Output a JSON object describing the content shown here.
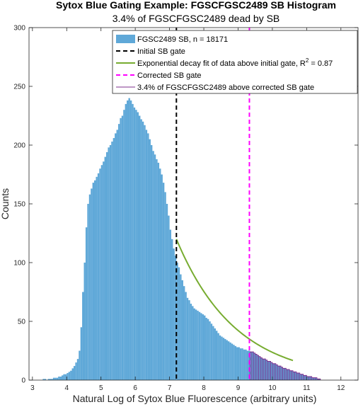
{
  "chart_data": {
    "type": "bar",
    "title": "Sytox Blue Gating Example: FGSCFGSC2489 SB Histogram",
    "subtitle": "3.4% of FGSCFGSC2489 dead by SB",
    "xlabel": "Natural Log of Sytox Blue Fluorescence (arbitrary units)",
    "ylabel": "Counts",
    "xlim": [
      2.9,
      12.5
    ],
    "ylim": [
      0,
      300
    ],
    "xticks": [
      3,
      4,
      5,
      6,
      7,
      8,
      9,
      10,
      11,
      12
    ],
    "yticks": [
      0,
      50,
      100,
      150,
      200,
      250,
      300
    ],
    "grid": false,
    "legend_position": "top-right",
    "colors": {
      "histogram": "#5fa8d8",
      "initial_gate": "#000000",
      "fit": "#77ac30",
      "corrected_gate": "#ff00ff",
      "above_gate": "#7e2f8e",
      "axis": "#262626"
    },
    "histogram": {
      "name": "FGSC2489 SB, n = 18171",
      "bin_start": 3.3,
      "bin_width": 0.05,
      "counts": [
        1,
        1,
        0,
        1,
        1,
        1,
        2,
        2,
        2,
        3,
        3,
        4,
        5,
        5,
        6,
        7,
        8,
        10,
        12,
        15,
        18,
        25,
        45,
        75,
        100,
        130,
        150,
        158,
        163,
        168,
        170,
        173,
        176,
        180,
        183,
        186,
        190,
        194,
        198,
        200,
        203,
        206,
        210,
        213,
        218,
        223,
        225,
        230,
        235,
        238,
        240,
        238,
        235,
        232,
        230,
        228,
        225,
        222,
        220,
        217,
        213,
        210,
        205,
        200,
        195,
        192,
        188,
        185,
        180,
        175,
        168,
        160,
        150,
        140,
        128,
        120,
        112,
        106,
        100,
        96,
        90,
        85,
        80,
        75,
        70,
        68,
        65,
        63,
        61,
        60,
        59,
        58,
        57,
        56,
        55,
        53,
        52,
        50,
        48,
        46,
        44,
        42,
        40,
        38,
        37,
        36,
        35,
        34,
        33,
        32,
        31,
        30,
        29,
        28,
        28,
        27,
        27,
        26,
        26,
        25,
        25,
        24,
        24,
        23,
        22,
        21,
        20,
        19,
        18,
        18,
        17,
        16,
        16,
        15,
        14,
        14,
        13,
        12,
        12,
        11,
        10,
        10,
        9,
        9,
        8,
        8,
        7,
        7,
        6,
        6,
        5,
        5,
        4,
        4,
        3,
        3,
        3,
        2,
        2,
        2,
        1,
        1
      ]
    },
    "initial_gate_x": 7.2,
    "corrected_gate_x": 9.33,
    "fit": {
      "name": "Exponential decay fit of data above initial gate",
      "r2_label": "R",
      "r2_value": "= 0.87",
      "x_start": 7.2,
      "x_end": 10.6,
      "y_start": 120,
      "decay_rate": 0.58
    },
    "above_gate_name": "3.4% of FGSCFGSC2489 above corrected SB gate",
    "legend": {
      "histogram": "FGSC2489 SB, n = 18171",
      "initial_gate": "Initial SB gate",
      "fit_prefix": "Exponential decay fit of data above initial gate, R",
      "fit_superscript": "2",
      "fit_suffix": " = 0.87",
      "corrected_gate": "Corrected SB gate",
      "above_gate": "3.4% of FGSCFGSC2489 above corrected SB gate"
    }
  }
}
